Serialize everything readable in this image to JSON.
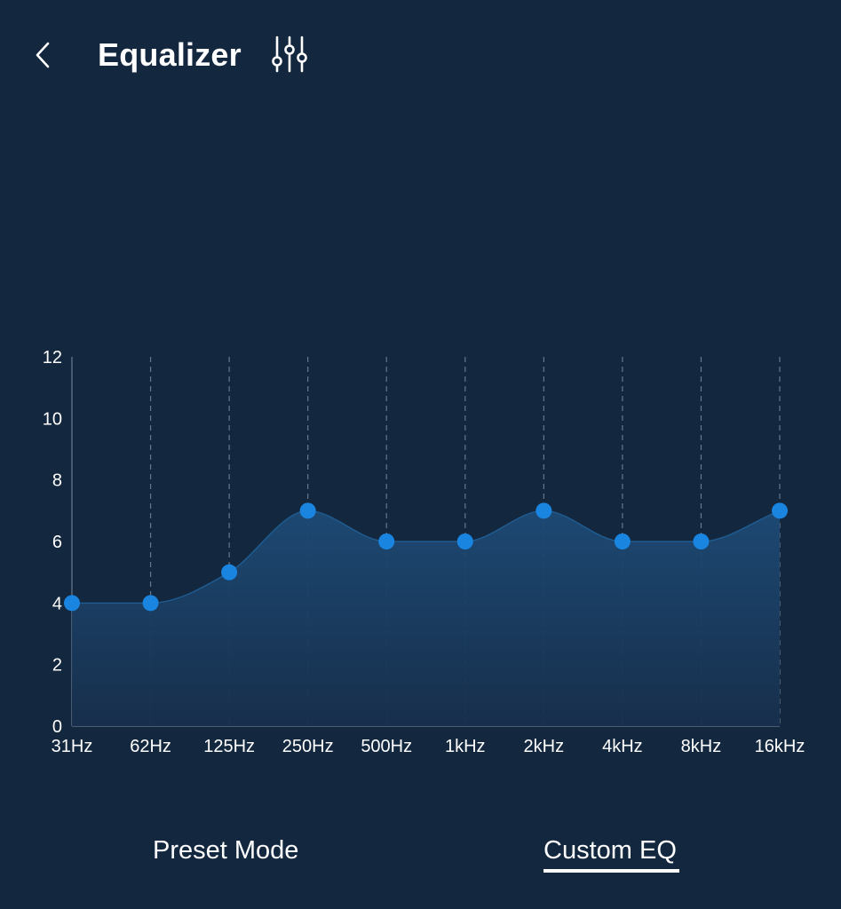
{
  "header": {
    "title": "Equalizer",
    "back_icon": "chevron-left-icon",
    "settings_icon": "sliders-icon"
  },
  "chart_data": {
    "type": "area",
    "x": [
      "31Hz",
      "62Hz",
      "125Hz",
      "250Hz",
      "500Hz",
      "1kHz",
      "2kHz",
      "4kHz",
      "8kHz",
      "16kHz"
    ],
    "values": [
      4,
      4,
      5,
      7,
      6,
      6,
      7,
      6,
      6,
      7
    ],
    "ylim": [
      0,
      12
    ],
    "yticks": [
      "0",
      "2",
      "4",
      "6",
      "8",
      "10",
      "12"
    ],
    "grid": "vertical-dashed",
    "colors": {
      "point": "#1a85e0",
      "fill_top": "#1d4a75",
      "fill_bottom": "#172f4c",
      "line": "#1f5b8f"
    }
  },
  "tabs": {
    "preset_label": "Preset Mode",
    "custom_label": "Custom EQ",
    "active": "Custom EQ"
  },
  "colors": {
    "background": "#13273f",
    "text": "#ffffff"
  }
}
